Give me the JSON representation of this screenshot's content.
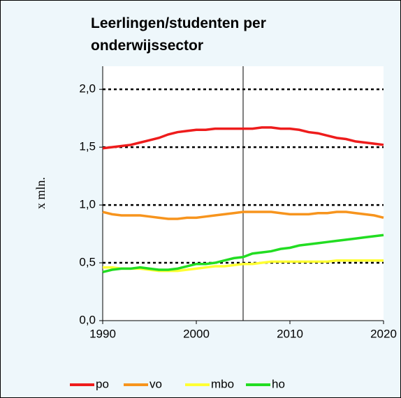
{
  "chart_data": {
    "type": "line",
    "title": "Leerlingen/studenten per onderwijssector",
    "ylabel": "x mln.",
    "x": [
      1990,
      1991,
      1992,
      1993,
      1994,
      1995,
      1996,
      1997,
      1998,
      1999,
      2000,
      2001,
      2002,
      2003,
      2004,
      2005,
      2006,
      2007,
      2008,
      2009,
      2010,
      2011,
      2012,
      2013,
      2014,
      2015,
      2016,
      2017,
      2018,
      2019,
      2020
    ],
    "series": [
      {
        "name": "po",
        "color": "#ee1c1c",
        "values": [
          1.49,
          1.5,
          1.51,
          1.52,
          1.54,
          1.56,
          1.58,
          1.61,
          1.63,
          1.64,
          1.65,
          1.65,
          1.66,
          1.66,
          1.66,
          1.66,
          1.66,
          1.67,
          1.67,
          1.66,
          1.66,
          1.65,
          1.63,
          1.62,
          1.6,
          1.58,
          1.57,
          1.55,
          1.54,
          1.53,
          1.52
        ]
      },
      {
        "name": "vo",
        "color": "#f7941d",
        "values": [
          0.94,
          0.92,
          0.91,
          0.91,
          0.91,
          0.9,
          0.89,
          0.88,
          0.88,
          0.89,
          0.89,
          0.9,
          0.91,
          0.92,
          0.93,
          0.94,
          0.94,
          0.94,
          0.94,
          0.93,
          0.92,
          0.92,
          0.92,
          0.93,
          0.93,
          0.94,
          0.94,
          0.93,
          0.92,
          0.91,
          0.89
        ]
      },
      {
        "name": "mbo",
        "color": "#ffff33",
        "values": [
          0.46,
          0.46,
          0.45,
          0.45,
          0.45,
          0.44,
          0.43,
          0.43,
          0.43,
          0.44,
          0.45,
          0.46,
          0.47,
          0.47,
          0.48,
          0.49,
          0.49,
          0.5,
          0.51,
          0.51,
          0.51,
          0.51,
          0.51,
          0.51,
          0.51,
          0.52,
          0.52,
          0.52,
          0.52,
          0.52,
          0.52
        ]
      },
      {
        "name": "ho",
        "color": "#22dd22",
        "values": [
          0.42,
          0.44,
          0.45,
          0.45,
          0.46,
          0.45,
          0.44,
          0.44,
          0.45,
          0.47,
          0.49,
          0.49,
          0.5,
          0.52,
          0.54,
          0.55,
          0.58,
          0.59,
          0.6,
          0.62,
          0.63,
          0.65,
          0.66,
          0.67,
          0.68,
          0.69,
          0.7,
          0.71,
          0.72,
          0.73,
          0.74
        ]
      }
    ],
    "xlim": [
      1990,
      2020
    ],
    "xticks": [
      1990,
      2000,
      2010,
      2020
    ],
    "ylim": [
      0,
      2.2
    ],
    "yticks": [
      {
        "value": 0,
        "label": "0,0"
      },
      {
        "value": 0.5,
        "label": "0,5"
      },
      {
        "value": 1,
        "label": "1,0"
      },
      {
        "value": 1.5,
        "label": "1,5"
      },
      {
        "value": 2,
        "label": "2,0"
      }
    ],
    "vline_x": 2005,
    "grid": true
  }
}
